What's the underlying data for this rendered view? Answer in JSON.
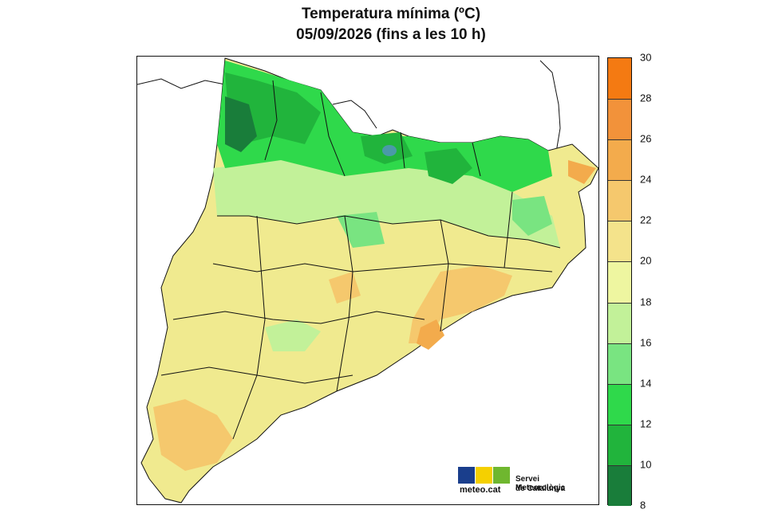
{
  "title": {
    "line1": "Temperatura mínima (ºC)",
    "line2": "05/09/2026 (fins a les 10 h)"
  },
  "colorbar": {
    "ticks": [
      "30",
      "28",
      "26",
      "24",
      "22",
      "20",
      "18",
      "16",
      "14",
      "12",
      "10",
      "8"
    ],
    "colors": [
      "#f47a12",
      "#f2923a",
      "#f3ab4c",
      "#f5c86d",
      "#f4e38b",
      "#eef6a0",
      "#c2f199",
      "#79e481",
      "#2fd94b",
      "#21b43c",
      "#197d3a",
      "#4a9aa8"
    ]
  },
  "logo": {
    "text": "meteo.cat",
    "org_line1": "Servei Meteorològic",
    "org_line2": "de Catalunya",
    "colors": [
      "#1a3e8c",
      "#f5d000",
      "#6fb72f"
    ]
  }
}
